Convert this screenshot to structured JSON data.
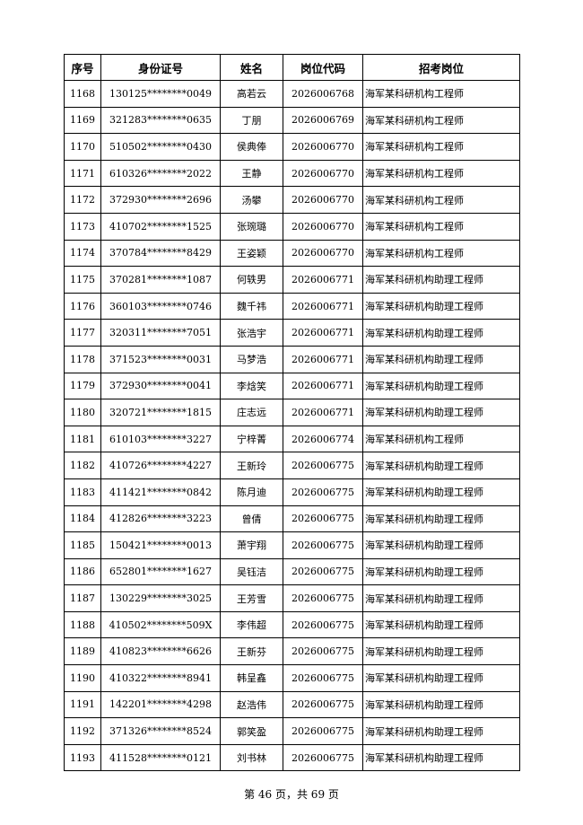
{
  "table": {
    "headers": [
      "序号",
      "身份证号",
      "姓名",
      "岗位代码",
      "招考岗位"
    ],
    "rows": [
      [
        "1168",
        "130125********0049",
        "高若云",
        "2026006768",
        "海军某科研机构工程师"
      ],
      [
        "1169",
        "321283********0635",
        "丁朋",
        "2026006769",
        "海军某科研机构工程师"
      ],
      [
        "1170",
        "510502********0430",
        "侯典俸",
        "2026006770",
        "海军某科研机构工程师"
      ],
      [
        "1171",
        "610326********2022",
        "王静",
        "2026006770",
        "海军某科研机构工程师"
      ],
      [
        "1172",
        "372930********2696",
        "汤攀",
        "2026006770",
        "海军某科研机构工程师"
      ],
      [
        "1173",
        "410702********1525",
        "张琬璐",
        "2026006770",
        "海军某科研机构工程师"
      ],
      [
        "1174",
        "370784********8429",
        "王姿颖",
        "2026006770",
        "海军某科研机构工程师"
      ],
      [
        "1175",
        "370281********1087",
        "何轶男",
        "2026006771",
        "海军某科研机构助理工程师"
      ],
      [
        "1176",
        "360103********0746",
        "魏千祎",
        "2026006771",
        "海军某科研机构助理工程师"
      ],
      [
        "1177",
        "320311********7051",
        "张浩宇",
        "2026006771",
        "海军某科研机构助理工程师"
      ],
      [
        "1178",
        "371523********0031",
        "马梦浩",
        "2026006771",
        "海军某科研机构助理工程师"
      ],
      [
        "1179",
        "372930********0041",
        "李焓笑",
        "2026006771",
        "海军某科研机构助理工程师"
      ],
      [
        "1180",
        "320721********1815",
        "庄志远",
        "2026006771",
        "海军某科研机构助理工程师"
      ],
      [
        "1181",
        "610103********3227",
        "宁梓菁",
        "2026006774",
        "海军某科研机构工程师"
      ],
      [
        "1182",
        "410726********4227",
        "王新玲",
        "2026006775",
        "海军某科研机构助理工程师"
      ],
      [
        "1183",
        "411421********0842",
        "陈月迪",
        "2026006775",
        "海军某科研机构助理工程师"
      ],
      [
        "1184",
        "412826********3223",
        "曾倩",
        "2026006775",
        "海军某科研机构助理工程师"
      ],
      [
        "1185",
        "150421********0013",
        "萧宇翔",
        "2026006775",
        "海军某科研机构助理工程师"
      ],
      [
        "1186",
        "652801********1627",
        "吴钰洁",
        "2026006775",
        "海军某科研机构助理工程师"
      ],
      [
        "1187",
        "130229********3025",
        "王芳雪",
        "2026006775",
        "海军某科研机构助理工程师"
      ],
      [
        "1188",
        "410502********509X",
        "李伟超",
        "2026006775",
        "海军某科研机构助理工程师"
      ],
      [
        "1189",
        "410823********6626",
        "王新芬",
        "2026006775",
        "海军某科研机构助理工程师"
      ],
      [
        "1190",
        "410322********8941",
        "韩呈鑫",
        "2026006775",
        "海军某科研机构助理工程师"
      ],
      [
        "1191",
        "142201********4298",
        "赵浩伟",
        "2026006775",
        "海军某科研机构助理工程师"
      ],
      [
        "1192",
        "371326********8524",
        "郭笑盈",
        "2026006775",
        "海军某科研机构助理工程师"
      ],
      [
        "1193",
        "411528********0121",
        "刘书林",
        "2026006775",
        "海军某科研机构助理工程师"
      ]
    ]
  },
  "footer": "第 46 页，共 69 页"
}
